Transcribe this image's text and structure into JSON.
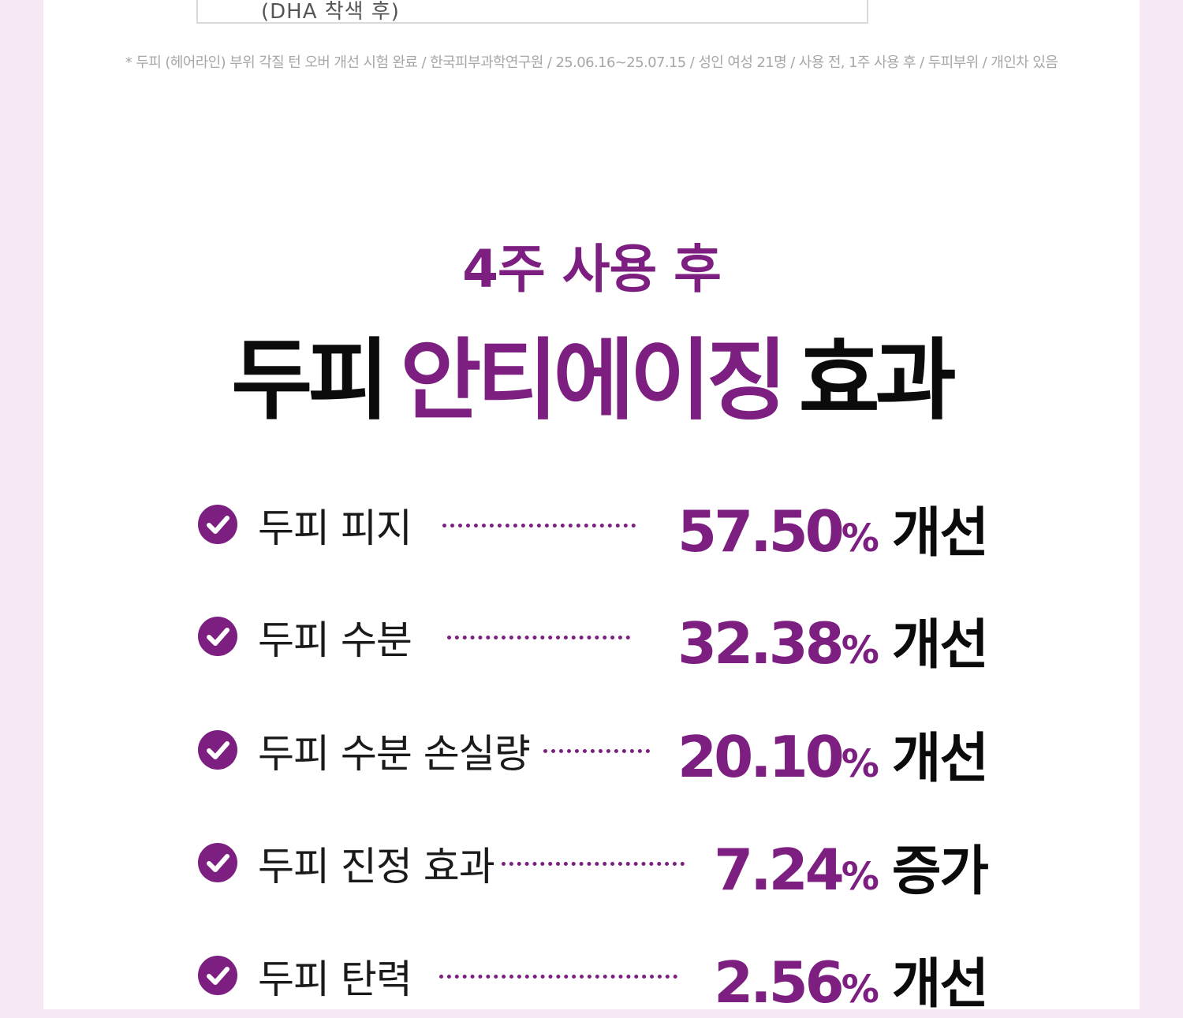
{
  "top_box": {
    "caption": "(DHA 착색 후)"
  },
  "footnote": "* 두피 (헤어라인) 부위 각질 턴 오버 개선 시험 완료 / 한국피부과학연구원 / 25.06.16~25.07.15 / 성인 여성 21명 / 사용 전, 1주 사용 후 / 두피부위 / 개인차 있음",
  "heading": {
    "sub": "4주 사용 후",
    "main_prefix": "두피",
    "main_highlight": "안티에이징",
    "main_suffix": "효과"
  },
  "effects": [
    {
      "label": "두피 피지",
      "value": "57.50",
      "unit": "%",
      "verb": "개선"
    },
    {
      "label": "두피 수분",
      "value": "32.38",
      "unit": "%",
      "verb": "개선"
    },
    {
      "label": "두피 수분 손실량",
      "value": "20.10",
      "unit": "%",
      "verb": "개선"
    },
    {
      "label": "두피 진정 효과",
      "value": "7.24",
      "unit": "%",
      "verb": "증가"
    },
    {
      "label": "두피 탄력",
      "value": "2.56",
      "unit": "%",
      "verb": "개선"
    }
  ],
  "colors": {
    "accent": "#7c1f81",
    "background": "#f7e8f6",
    "text": "#0b0b0b",
    "footnote": "#a7a7a7"
  }
}
